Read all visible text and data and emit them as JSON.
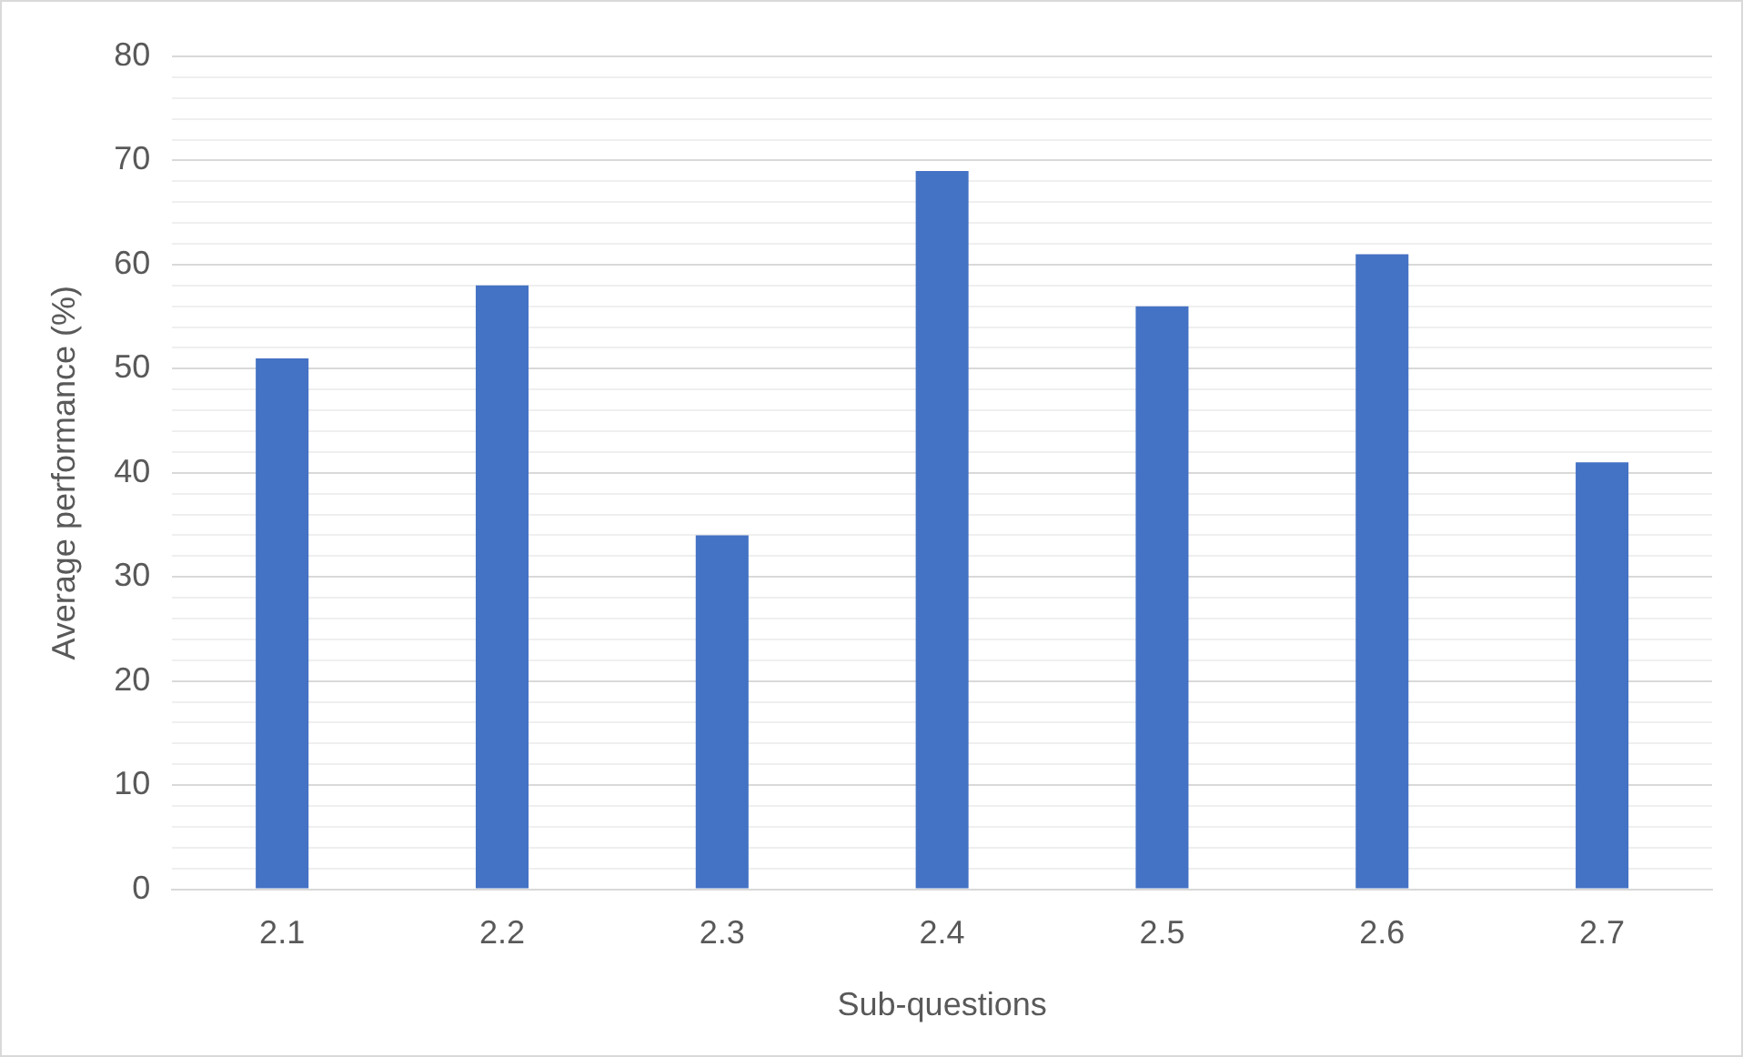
{
  "chart_data": {
    "type": "bar",
    "xlabel": "Sub-questions",
    "ylabel": "Average performance (%)",
    "categories": [
      "2.1",
      "2.2",
      "2.3",
      "2.4",
      "2.5",
      "2.6",
      "2.7"
    ],
    "values": [
      51,
      58,
      34,
      69,
      56,
      61,
      41
    ],
    "color": "#4472c4",
    "ylim": [
      0,
      80
    ],
    "yticks": [
      0,
      {
        "value": 2,
        "label": null
      },
      {
        "value": 4,
        "label": null
      },
      {
        "value": 6,
        "label": null
      },
      {
        "value": 8,
        "label": null
      },
      10,
      {
        "value": 12,
        "label": null
      },
      {
        "value": 14,
        "label": null
      },
      {
        "value": 16,
        "label": null
      },
      {
        "value": 18,
        "label": null
      },
      20,
      {
        "value": 22,
        "label": null
      },
      {
        "value": 24,
        "label": null
      },
      {
        "value": 26,
        "label": null
      },
      {
        "value": 28,
        "label": null
      },
      30,
      {
        "value": 32,
        "label": null
      },
      {
        "value": 34,
        "label": null
      },
      {
        "value": 36,
        "label": null
      },
      {
        "value": 38,
        "label": null
      },
      40,
      {
        "value": 42,
        "label": null
      },
      {
        "value": 44,
        "label": null
      },
      {
        "value": 46,
        "label": null
      },
      {
        "value": 48,
        "label": null
      },
      50,
      {
        "value": 52,
        "label": null
      },
      {
        "value": 54,
        "label": null
      },
      {
        "value": 56,
        "label": null
      },
      {
        "value": 58,
        "label": null
      },
      60,
      {
        "value": 62,
        "label": null
      },
      {
        "value": 64,
        "label": null
      },
      {
        "value": 66,
        "label": null
      },
      {
        "value": 68,
        "label": null
      },
      70,
      {
        "value": 72,
        "label": null
      },
      {
        "value": 74,
        "label": null
      },
      {
        "value": 76,
        "label": null
      },
      {
        "value": 78,
        "label": null
      },
      80
    ],
    "grid": "y",
    "legend": false
  }
}
